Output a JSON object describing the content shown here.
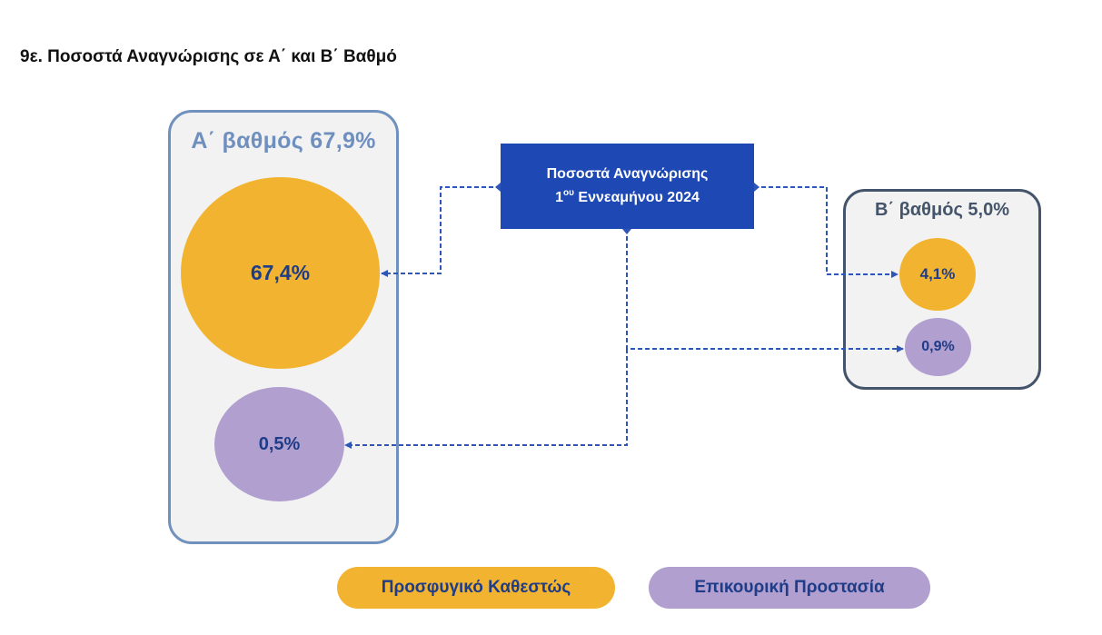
{
  "title": "9ε. Ποσοστά Αναγνώρισης σε Α΄ και Β΄ Βαθμό",
  "center": {
    "line1": "Ποσοστά Αναγνώρισης",
    "line2_prefix": "1",
    "line2_sup": "ου",
    "line2_rest": " Εννεαμήνου 2024"
  },
  "group_a": {
    "label": "Α΄ βαθμός 67,9%",
    "refugee_value": "67,4%",
    "subsidiary_value": "0,5%"
  },
  "group_b": {
    "label": "Β΄ βαθμός 5,0%",
    "refugee_value": "4,1%",
    "subsidiary_value": "0,9%"
  },
  "legend": {
    "refugee": "Προσφυγικό Καθεστώς",
    "subsidiary": "Επικουρική Προστασία"
  },
  "colors": {
    "refugee": "#f2b430",
    "subsidiary": "#b09fcf",
    "center_box": "#1e49b4",
    "text_blue": "#1f3c88",
    "connector": "#2e55b8"
  }
}
